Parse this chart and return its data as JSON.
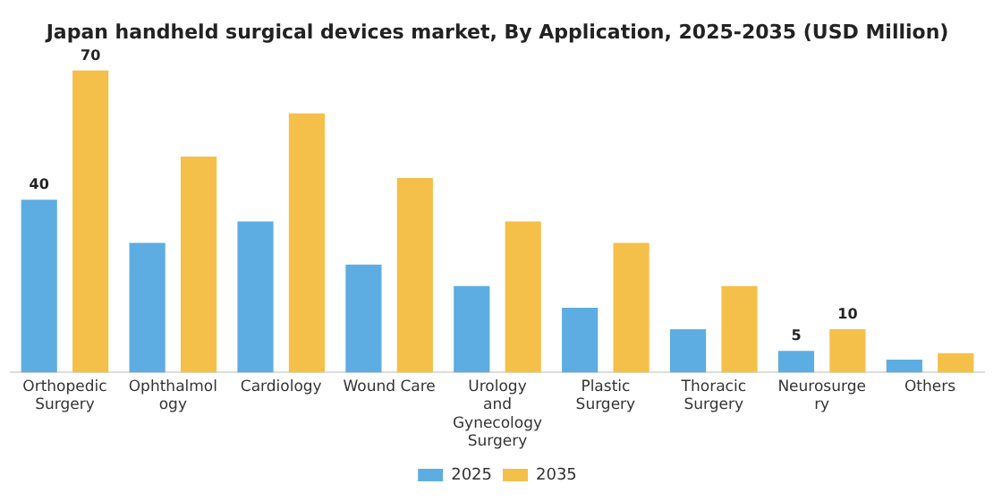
{
  "chart_data": {
    "type": "bar",
    "title": "Japan handheld surgical devices market, By Application, 2025-2035 (USD Million)",
    "categories": [
      "Orthopedic Surgery",
      "Ophthalmology",
      "Cardiology",
      "Wound Care",
      "Urology and Gynecology Surgery",
      "Plastic Surgery",
      "Thoracic Surgery",
      "Neurosurgery",
      "Others"
    ],
    "series": [
      {
        "name": "2025",
        "color": "#5dade2",
        "values": [
          40,
          30,
          35,
          25,
          20,
          15,
          10,
          5,
          3
        ],
        "value_labels": [
          "40",
          null,
          null,
          null,
          null,
          null,
          null,
          "5",
          null
        ]
      },
      {
        "name": "2035",
        "color": "#f5c04a",
        "values": [
          70,
          50,
          60,
          45,
          35,
          30,
          20,
          10,
          4.5
        ],
        "value_labels": [
          "70",
          null,
          null,
          null,
          null,
          null,
          null,
          "10",
          null
        ]
      }
    ],
    "grid": false,
    "legend": "bottom",
    "tick_labels": "x"
  }
}
